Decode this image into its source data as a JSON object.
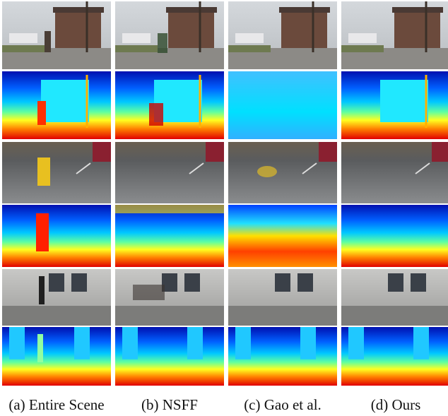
{
  "captions": [
    "(a) Entire Scene",
    "(b) NSFF",
    "(c) Gao et al.",
    "(d) Ours"
  ]
}
